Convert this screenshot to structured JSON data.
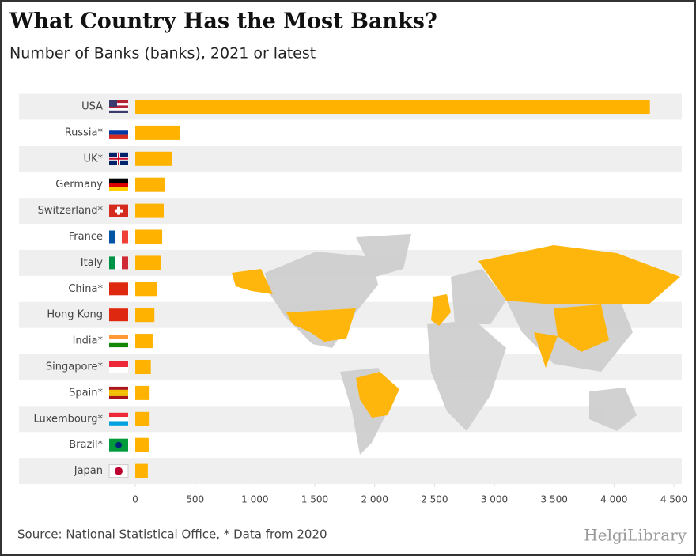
{
  "chart_data": {
    "type": "bar",
    "orientation": "horizontal",
    "title": "What Country Has the Most Banks?",
    "subtitle": "Number of Banks (banks), 2021 or latest",
    "categories": [
      "USA",
      "Russia*",
      "UK*",
      "Germany",
      "Switzerland*",
      "France",
      "Italy",
      "China*",
      "Hong Kong",
      "India*",
      "Singapore*",
      "Spain*",
      "Luxembourg*",
      "Brazil*",
      "Japan"
    ],
    "values": [
      4300,
      370,
      310,
      245,
      238,
      225,
      212,
      185,
      160,
      145,
      130,
      120,
      120,
      112,
      105
    ],
    "color": "#ffb300",
    "xlim": [
      0,
      4500
    ],
    "xticks": [
      0,
      500,
      {
        "value": 1000,
        "label": "1 000"
      },
      {
        "value": 1500,
        "label": "1 500"
      },
      {
        "value": 2000,
        "label": "2 000"
      },
      {
        "value": 2500,
        "label": "2 500"
      },
      {
        "value": 3000,
        "label": "3 000"
      },
      {
        "value": 3500,
        "label": "3 500"
      },
      {
        "value": 4000,
        "label": "4 000"
      },
      {
        "value": 4500,
        "label": "4 500"
      }
    ],
    "source": "Source: National Statistical Office, * Data from 2020",
    "brand": "HelgiLibrary"
  }
}
